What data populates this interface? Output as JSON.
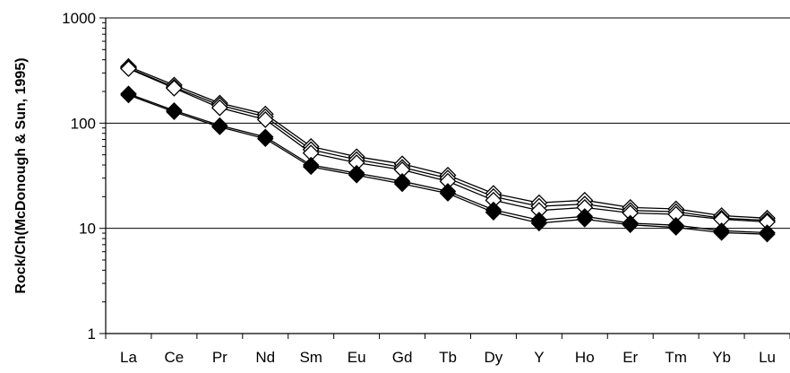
{
  "chart_data": {
    "type": "line",
    "title": "",
    "xlabel": "",
    "ylabel": "Rock/Ch(McDonough & Sun, 1995)",
    "yscale": "log",
    "ylim": [
      1,
      1000
    ],
    "yticks": [
      "1",
      "10",
      "100",
      "1000"
    ],
    "grid": "horizontal major lines",
    "legend": "none",
    "categories": [
      "La",
      "Ce",
      "Pr",
      "Nd",
      "Sm",
      "Eu",
      "Gd",
      "Tb",
      "Dy",
      "Y",
      "Ho",
      "Er",
      "Tm",
      "Yb",
      "Lu"
    ],
    "series": [
      {
        "marker": "open-diamond",
        "values": [
          345,
          230,
          155,
          122,
          60,
          48,
          41,
          32,
          21.5,
          17.5,
          18.5,
          15.8,
          15.3,
          13.2,
          12.5
        ]
      },
      {
        "marker": "open-diamond",
        "values": [
          335,
          220,
          148,
          115,
          56,
          45,
          38,
          30,
          20,
          16.2,
          17,
          14.8,
          14.4,
          12.5,
          11.9
        ]
      },
      {
        "marker": "open-diamond",
        "values": [
          330,
          215,
          140,
          108,
          52,
          42,
          36,
          28,
          18.5,
          14.8,
          15.8,
          14,
          13.6,
          12.2,
          11.5
        ]
      },
      {
        "marker": "filled-diamond",
        "values": [
          190,
          132,
          95,
          74,
          40,
          33.5,
          28,
          22.5,
          15,
          12,
          13,
          11.2,
          10.7,
          9.5,
          9.1
        ]
      },
      {
        "marker": "filled-diamond",
        "values": [
          185,
          128,
          92,
          71,
          38.5,
          32,
          26.5,
          21.5,
          14.2,
          11.2,
          12.2,
          10.8,
          10.2,
          9.1,
          8.8
        ]
      }
    ],
    "colors": {
      "line": "#000000",
      "grid": "#000000",
      "background": "#ffffff"
    }
  }
}
